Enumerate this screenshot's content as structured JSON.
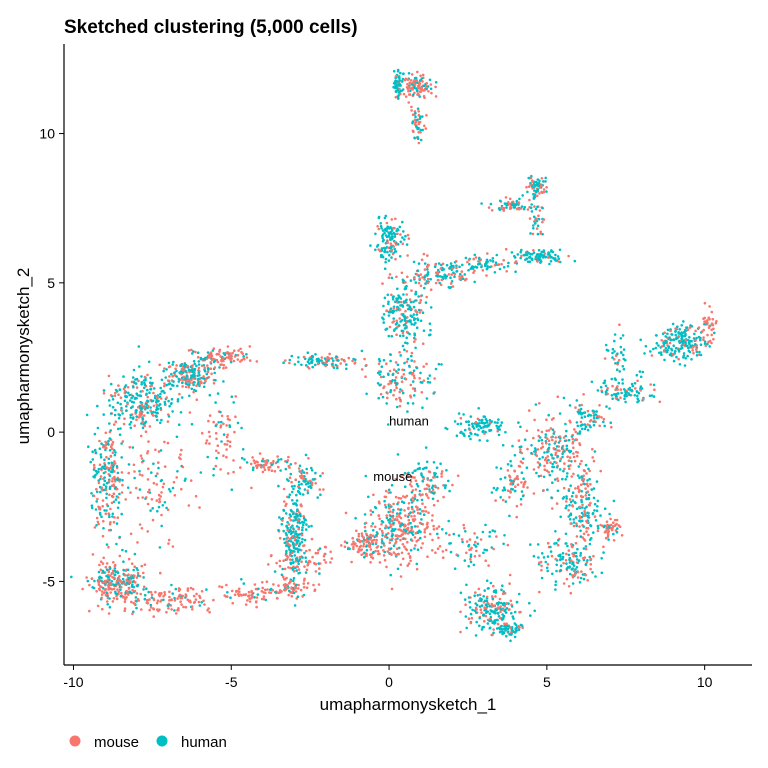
{
  "chart_data": {
    "type": "scatter",
    "title": "Sketched clustering (5,000 cells)",
    "xlabel": "umapharmonysketch_1",
    "ylabel": "umapharmonysketch_2",
    "xlim": [
      -10.3,
      11.5
    ],
    "ylim": [
      -7.8,
      13
    ],
    "xticks": [
      -10,
      -5,
      0,
      5,
      10
    ],
    "yticks": [
      -5,
      0,
      5,
      10
    ],
    "xtick_labels": [
      "-10",
      "-5",
      "0",
      "5",
      "10"
    ],
    "ytick_labels": [
      "-5",
      "0",
      "5",
      "10"
    ],
    "grid": false,
    "legend_position": "bottom-left",
    "point_count_shown": 5000,
    "series": [
      {
        "name": "mouse",
        "color": "#F8766D"
      },
      {
        "name": "human",
        "color": "#00BFC4"
      }
    ],
    "group_labels": [
      {
        "text": "human",
        "x": 0.0,
        "y": 0.35
      },
      {
        "text": "mouse",
        "x": -0.5,
        "y": -1.5
      }
    ],
    "density_regions": [
      {
        "x": -8.6,
        "y": -5.0,
        "sx": 0.7,
        "sy": 0.6,
        "w": 8,
        "mouse": 0.55
      },
      {
        "x": -8.9,
        "y": -1.5,
        "sx": 0.45,
        "sy": 1.6,
        "w": 7,
        "mouse": 0.5
      },
      {
        "x": -7.8,
        "y": 1.0,
        "sx": 0.9,
        "sy": 0.8,
        "w": 8,
        "mouse": 0.35
      },
      {
        "x": -6.3,
        "y": 1.9,
        "sx": 0.6,
        "sy": 0.5,
        "w": 6,
        "mouse": 0.4
      },
      {
        "x": -6.8,
        "y": -5.6,
        "sx": 1.3,
        "sy": 0.4,
        "w": 4,
        "mouse": 0.8
      },
      {
        "x": -4.5,
        "y": -5.4,
        "sx": 0.9,
        "sy": 0.25,
        "w": 2,
        "mouse": 0.9
      },
      {
        "x": -7.3,
        "y": -1.8,
        "sx": 0.8,
        "sy": 1.5,
        "w": 3,
        "mouse": 0.7
      },
      {
        "x": -5.3,
        "y": -0.2,
        "sx": 0.6,
        "sy": 1.2,
        "w": 2,
        "mouse": 0.7
      },
      {
        "x": -5.2,
        "y": 2.5,
        "sx": 0.7,
        "sy": 0.25,
        "w": 3,
        "mouse": 0.8
      },
      {
        "x": -3.8,
        "y": -1.1,
        "sx": 0.8,
        "sy": 0.25,
        "w": 2,
        "mouse": 0.8
      },
      {
        "x": -3.0,
        "y": -3.4,
        "sx": 0.35,
        "sy": 1.3,
        "w": 7,
        "mouse": 0.2
      },
      {
        "x": -2.6,
        "y": -1.6,
        "sx": 0.4,
        "sy": 0.5,
        "w": 2,
        "mouse": 0.4
      },
      {
        "x": -3.2,
        "y": -5.2,
        "sx": 0.6,
        "sy": 0.3,
        "w": 2,
        "mouse": 0.8
      },
      {
        "x": -2.0,
        "y": 2.4,
        "sx": 1.0,
        "sy": 0.2,
        "w": 3,
        "mouse": 0.4
      },
      {
        "x": 0.3,
        "y": -3.2,
        "sx": 1.0,
        "sy": 1.1,
        "w": 10,
        "mouse": 0.65
      },
      {
        "x": 1.2,
        "y": -1.6,
        "sx": 0.6,
        "sy": 0.7,
        "w": 3,
        "mouse": 0.6
      },
      {
        "x": -0.8,
        "y": -3.8,
        "sx": 0.6,
        "sy": 0.4,
        "w": 3,
        "mouse": 0.8
      },
      {
        "x": 0.4,
        "y": 1.7,
        "sx": 0.9,
        "sy": 0.7,
        "w": 4,
        "mouse": 0.45
      },
      {
        "x": 0.5,
        "y": 4.0,
        "sx": 0.6,
        "sy": 0.8,
        "w": 6,
        "mouse": 0.3
      },
      {
        "x": 0.0,
        "y": 6.4,
        "sx": 0.4,
        "sy": 0.55,
        "w": 4,
        "mouse": 0.3
      },
      {
        "x": 1.5,
        "y": 5.3,
        "sx": 0.9,
        "sy": 0.4,
        "w": 4,
        "mouse": 0.35
      },
      {
        "x": 3.0,
        "y": 5.6,
        "sx": 0.7,
        "sy": 0.25,
        "w": 2,
        "mouse": 0.2
      },
      {
        "x": 4.8,
        "y": 5.9,
        "sx": 0.7,
        "sy": 0.2,
        "w": 3,
        "mouse": 0.15
      },
      {
        "x": 4.7,
        "y": 8.2,
        "sx": 0.25,
        "sy": 0.3,
        "w": 2,
        "mouse": 0.4
      },
      {
        "x": 3.9,
        "y": 7.6,
        "sx": 0.5,
        "sy": 0.2,
        "w": 2,
        "mouse": 0.4
      },
      {
        "x": 4.7,
        "y": 7.1,
        "sx": 0.2,
        "sy": 0.6,
        "w": 1,
        "mouse": 0.5
      },
      {
        "x": 0.3,
        "y": 11.6,
        "sx": 0.15,
        "sy": 0.35,
        "w": 2,
        "mouse": 0.3
      },
      {
        "x": 0.9,
        "y": 11.6,
        "sx": 0.4,
        "sy": 0.3,
        "w": 3,
        "mouse": 0.6
      },
      {
        "x": 0.9,
        "y": 10.3,
        "sx": 0.25,
        "sy": 0.6,
        "w": 1.5,
        "mouse": 0.55
      },
      {
        "x": 2.9,
        "y": 0.2,
        "sx": 0.7,
        "sy": 0.3,
        "w": 3,
        "mouse": 0.1
      },
      {
        "x": 5.2,
        "y": -0.6,
        "sx": 0.9,
        "sy": 0.9,
        "w": 6,
        "mouse": 0.5
      },
      {
        "x": 6.1,
        "y": -2.4,
        "sx": 0.6,
        "sy": 1.4,
        "w": 6,
        "mouse": 0.45
      },
      {
        "x": 5.7,
        "y": -4.4,
        "sx": 0.8,
        "sy": 0.6,
        "w": 4,
        "mouse": 0.35
      },
      {
        "x": 7.0,
        "y": -3.2,
        "sx": 0.25,
        "sy": 0.3,
        "w": 1.5,
        "mouse": 0.8
      },
      {
        "x": 3.3,
        "y": -5.9,
        "sx": 0.7,
        "sy": 0.6,
        "w": 6,
        "mouse": 0.35
      },
      {
        "x": 3.8,
        "y": -6.6,
        "sx": 0.4,
        "sy": 0.25,
        "w": 2,
        "mouse": 0.15
      },
      {
        "x": 2.7,
        "y": -3.8,
        "sx": 0.9,
        "sy": 0.6,
        "w": 2,
        "mouse": 0.5
      },
      {
        "x": 3.9,
        "y": -1.8,
        "sx": 0.5,
        "sy": 0.6,
        "w": 2,
        "mouse": 0.5
      },
      {
        "x": 7.5,
        "y": 1.4,
        "sx": 0.8,
        "sy": 0.4,
        "w": 3,
        "mouse": 0.2
      },
      {
        "x": 6.3,
        "y": 0.5,
        "sx": 0.5,
        "sy": 0.4,
        "w": 2,
        "mouse": 0.4
      },
      {
        "x": 9.2,
        "y": 3.0,
        "sx": 0.7,
        "sy": 0.5,
        "w": 6,
        "mouse": 0.15
      },
      {
        "x": 10.1,
        "y": 3.6,
        "sx": 0.2,
        "sy": 0.5,
        "w": 1.2,
        "mouse": 0.9
      },
      {
        "x": 7.2,
        "y": 2.6,
        "sx": 0.35,
        "sy": 0.6,
        "w": 1,
        "mouse": 0.3
      },
      {
        "x": -2.8,
        "y": -4.3,
        "sx": 0.9,
        "sy": 0.5,
        "w": 2,
        "mouse": 0.8
      }
    ]
  }
}
